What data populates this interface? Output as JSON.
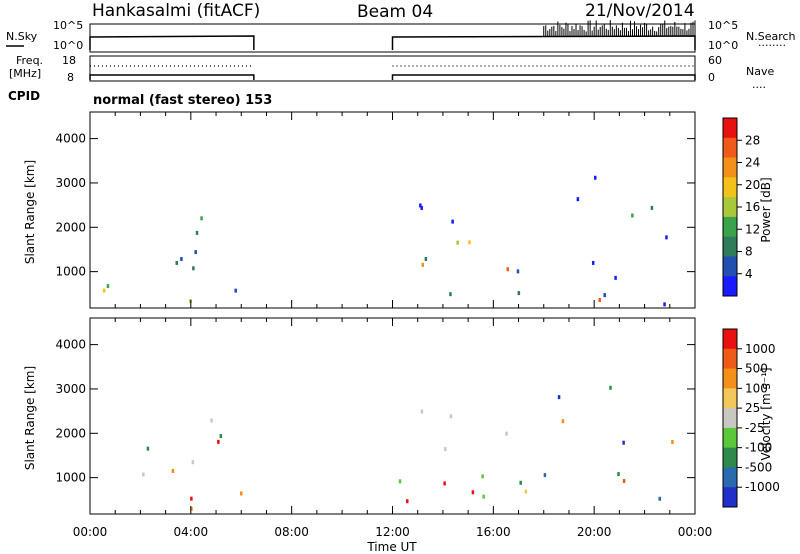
{
  "header": {
    "station": "Hankasalmi (fitACF)",
    "beam": "Beam 04",
    "date": "21/Nov/2014"
  },
  "labels": {
    "nsky": "N.Sky",
    "nsearch": "N.Search",
    "freq_line1": "Freq.",
    "freq_line2": "[MHz]",
    "nave": "Nave",
    "cpid": "CPID",
    "cpid_value": "normal (fast stereo) 153",
    "noise_ticks_left": [
      "10^5",
      "10^0"
    ],
    "noise_ticks_right": [
      "10^5",
      "10^0"
    ],
    "freq_ticks_left": [
      "18",
      "8"
    ],
    "freq_ticks_right": [
      "60",
      "0"
    ],
    "nsearch_key": "........",
    "nave_key": "....",
    "x_axis_title": "Time UT",
    "range_title": "Slant Range [km]",
    "power_title": "Power [dB]",
    "velocity_title": "Velocity [m s⁻¹]"
  },
  "colors": {
    "power_scale": [
      "#1a1aff",
      "#2050b0",
      "#2e7d5a",
      "#3aa24a",
      "#a8c83a",
      "#f2c21a",
      "#f39018",
      "#f05a18",
      "#e81010"
    ],
    "velocity_scale": [
      "#2030c8",
      "#2a6ab0",
      "#2e8a4a",
      "#5ac83a",
      "#c8c8c0",
      "#f2c85a",
      "#f39018",
      "#f05a18",
      "#e81010"
    ],
    "velocity_ground": "#c4c4bc"
  },
  "chart_data": [
    {
      "type": "line",
      "title": "N.Sky / N.Search",
      "x_unit": "hours UT",
      "xlim": [
        0,
        24
      ],
      "ylim_left": [
        "10^0",
        "10^5"
      ],
      "series": [
        {
          "name": "N.Sky",
          "segments": [
            [
              0.0,
              6.5
            ],
            [
              12.0,
              24.0
            ]
          ],
          "level": "near 10^4"
        },
        {
          "name": "N.Search",
          "segments": [
            [
              18.0,
              24.0
            ]
          ],
          "level": "spikes up to ~10^5"
        }
      ]
    },
    {
      "type": "line",
      "title": "Freq. / Nave",
      "x_unit": "hours UT",
      "xlim": [
        0,
        24
      ],
      "ylim_left": [
        8,
        18
      ],
      "ylim_right": [
        0,
        60
      ],
      "series": [
        {
          "name": "Freq. [MHz]",
          "segments": [
            [
              0.0,
              6.5
            ],
            [
              12.0,
              24.0
            ]
          ],
          "values_approx": [
            10.5,
            11.0
          ]
        },
        {
          "name": "Nave",
          "x": [
            0,
            6.5,
            12,
            24
          ],
          "y": [
            40,
            40,
            40,
            40
          ]
        }
      ]
    },
    {
      "type": "heatmap",
      "title": "Power [dB]",
      "x_ticks": [
        "00:00",
        "04:00",
        "08:00",
        "12:00",
        "16:00",
        "20:00",
        "00:00"
      ],
      "xlim": [
        0,
        24
      ],
      "y_ticks": [
        "1000",
        "2000",
        "3000",
        "4000"
      ],
      "ylim": [
        180,
        4600
      ],
      "ylabel": "Slant Range [km]",
      "xlabel": "Time UT",
      "colorbar": {
        "label": "Power [dB]",
        "ticks": [
          "4",
          "8",
          "12",
          "16",
          "20",
          "24",
          "28"
        ],
        "range": [
          0,
          30
        ]
      },
      "data_gap": [
        6.5,
        12.0
      ],
      "regions": [
        {
          "t": [
            0.0,
            6.5
          ],
          "range_km": [
            300,
            2600
          ],
          "peak_db": 28,
          "peaks_at": [
            3.0,
            4.0
          ]
        },
        {
          "t": [
            12.0,
            24.0
          ],
          "range_km": [
            300,
            3200
          ],
          "peak_db": 28,
          "peaks_at": [
            13.5,
            14.5,
            20.3
          ]
        }
      ]
    },
    {
      "type": "heatmap",
      "title": "Velocity [m s⁻¹]",
      "x_ticks": [
        "00:00",
        "04:00",
        "08:00",
        "12:00",
        "16:00",
        "20:00",
        "00:00"
      ],
      "xlim": [
        0,
        24
      ],
      "y_ticks": [
        "1000",
        "2000",
        "3000",
        "4000"
      ],
      "ylim": [
        180,
        4600
      ],
      "ylabel": "Slant Range [km]",
      "xlabel": "Time UT",
      "colorbar": {
        "label": "Velocity [m s⁻¹]",
        "ticks": [
          "1000",
          "500",
          "100",
          "25",
          "-25",
          "-100",
          "-500",
          "-1000"
        ]
      },
      "data_gap": [
        6.5,
        12.0
      ]
    }
  ]
}
